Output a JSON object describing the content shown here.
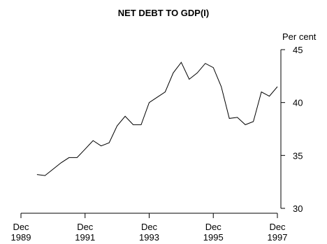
{
  "chart_data": {
    "type": "line",
    "title": "NET DEBT TO GDP(I)",
    "ylabel": "Per cent",
    "ylim": [
      30,
      45
    ],
    "yticks": [
      30,
      35,
      40,
      45
    ],
    "xlim": [
      "1989-12",
      "1997-12"
    ],
    "xticks": [
      {
        "x": "1989-12",
        "label_line1": "Dec",
        "label_line2": "1989"
      },
      {
        "x": "1991-12",
        "label_line1": "Dec",
        "label_line2": "1991"
      },
      {
        "x": "1993-12",
        "label_line1": "Dec",
        "label_line2": "1993"
      },
      {
        "x": "1995-12",
        "label_line1": "Dec",
        "label_line2": "1995"
      },
      {
        "x": "1997-12",
        "label_line1": "Dec",
        "label_line2": "1997"
      }
    ],
    "grid": false,
    "series": [
      {
        "x": [
          "1990-06",
          "1990-09",
          "1990-12",
          "1991-03",
          "1991-06",
          "1991-09",
          "1991-12",
          "1992-03",
          "1992-06",
          "1992-09",
          "1992-12",
          "1993-03",
          "1993-06",
          "1993-09",
          "1993-12",
          "1994-03",
          "1994-06",
          "1994-09",
          "1994-12",
          "1995-03",
          "1995-06",
          "1995-09",
          "1995-12",
          "1996-03",
          "1996-06",
          "1996-09",
          "1996-12",
          "1997-03",
          "1997-06",
          "1997-09",
          "1997-12"
        ],
        "values": [
          33.2,
          33.1,
          33.7,
          34.3,
          34.8,
          34.8,
          35.6,
          36.4,
          35.9,
          36.2,
          37.8,
          38.7,
          37.9,
          37.9,
          40.0,
          40.5,
          41.0,
          42.8,
          43.8,
          42.2,
          42.8,
          43.7,
          43.3,
          41.5,
          38.5,
          38.6,
          37.9,
          38.2,
          41.0,
          40.6,
          41.5
        ]
      }
    ]
  }
}
